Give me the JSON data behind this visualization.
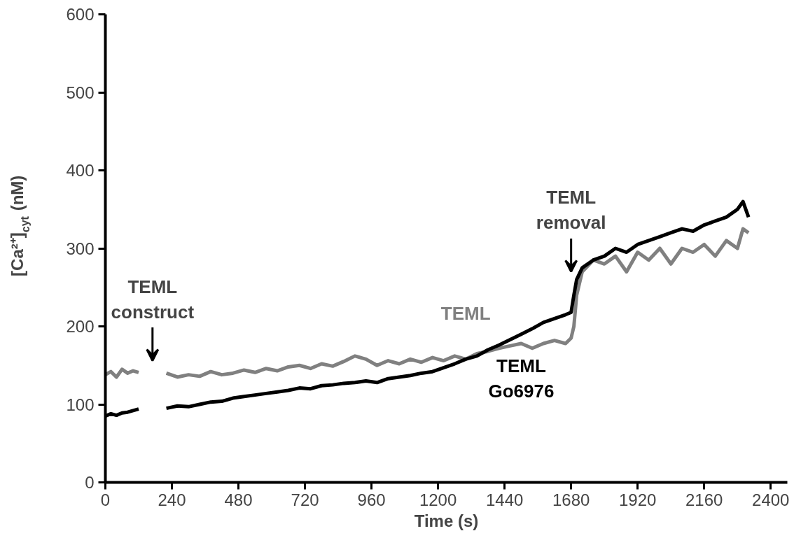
{
  "chart_data": {
    "type": "line",
    "xlabel": "Time (s)",
    "ylabel": "[Ca²⁺]$_{cyt}$ (nM)",
    "xlim": [
      0,
      2460
    ],
    "ylim": [
      0,
      600
    ],
    "xticks": [
      0,
      240,
      480,
      720,
      960,
      1200,
      1440,
      1680,
      1920,
      2160,
      2400
    ],
    "yticks": [
      0,
      100,
      200,
      300,
      400,
      500,
      600
    ],
    "grid": false,
    "marker": "none",
    "line_style": "solid",
    "annotations": [
      "TEML\nconstruct",
      "TEML\nremoval"
    ],
    "series": [
      {
        "name": "TEML",
        "color": "#808080",
        "x": [
          0,
          20,
          40,
          60,
          80,
          100,
          120,
          170,
          220,
          260,
          300,
          340,
          380,
          420,
          460,
          500,
          540,
          580,
          620,
          660,
          700,
          740,
          780,
          820,
          860,
          900,
          940,
          980,
          1020,
          1060,
          1100,
          1140,
          1180,
          1220,
          1260,
          1300,
          1340,
          1380,
          1420,
          1460,
          1500,
          1540,
          1580,
          1620,
          1660,
          1680,
          1690,
          1700,
          1720,
          1760,
          1800,
          1840,
          1880,
          1920,
          1960,
          2000,
          2040,
          2080,
          2120,
          2160,
          2200,
          2240,
          2280,
          2300,
          2320
        ],
        "values": [
          138,
          142,
          135,
          145,
          140,
          143,
          141,
          null,
          140,
          135,
          138,
          136,
          142,
          138,
          140,
          144,
          141,
          146,
          143,
          148,
          150,
          146,
          152,
          149,
          155,
          162,
          158,
          150,
          156,
          152,
          158,
          154,
          160,
          156,
          162,
          158,
          165,
          168,
          172,
          175,
          178,
          172,
          178,
          182,
          178,
          185,
          200,
          240,
          270,
          285,
          280,
          290,
          270,
          295,
          285,
          300,
          280,
          300,
          295,
          305,
          290,
          310,
          300,
          325,
          320
        ]
      },
      {
        "name": "TEML\nGo6976",
        "color": "#000000",
        "x": [
          0,
          20,
          40,
          60,
          80,
          100,
          120,
          170,
          220,
          260,
          300,
          340,
          380,
          420,
          460,
          500,
          540,
          580,
          620,
          660,
          700,
          740,
          780,
          820,
          860,
          900,
          940,
          980,
          1020,
          1060,
          1100,
          1140,
          1180,
          1220,
          1260,
          1300,
          1340,
          1380,
          1420,
          1460,
          1500,
          1540,
          1580,
          1620,
          1660,
          1680,
          1690,
          1700,
          1720,
          1760,
          1800,
          1840,
          1880,
          1920,
          1960,
          2000,
          2040,
          2080,
          2120,
          2160,
          2200,
          2240,
          2280,
          2300,
          2320
        ],
        "values": [
          85,
          88,
          86,
          89,
          90,
          92,
          94,
          null,
          95,
          98,
          97,
          100,
          103,
          104,
          108,
          110,
          112,
          114,
          116,
          118,
          121,
          120,
          124,
          125,
          127,
          128,
          130,
          128,
          133,
          135,
          137,
          140,
          142,
          147,
          152,
          158,
          162,
          170,
          176,
          183,
          190,
          197,
          205,
          210,
          215,
          218,
          240,
          260,
          275,
          285,
          290,
          300,
          295,
          305,
          310,
          315,
          320,
          325,
          322,
          330,
          335,
          340,
          350,
          360,
          340
        ]
      }
    ]
  }
}
